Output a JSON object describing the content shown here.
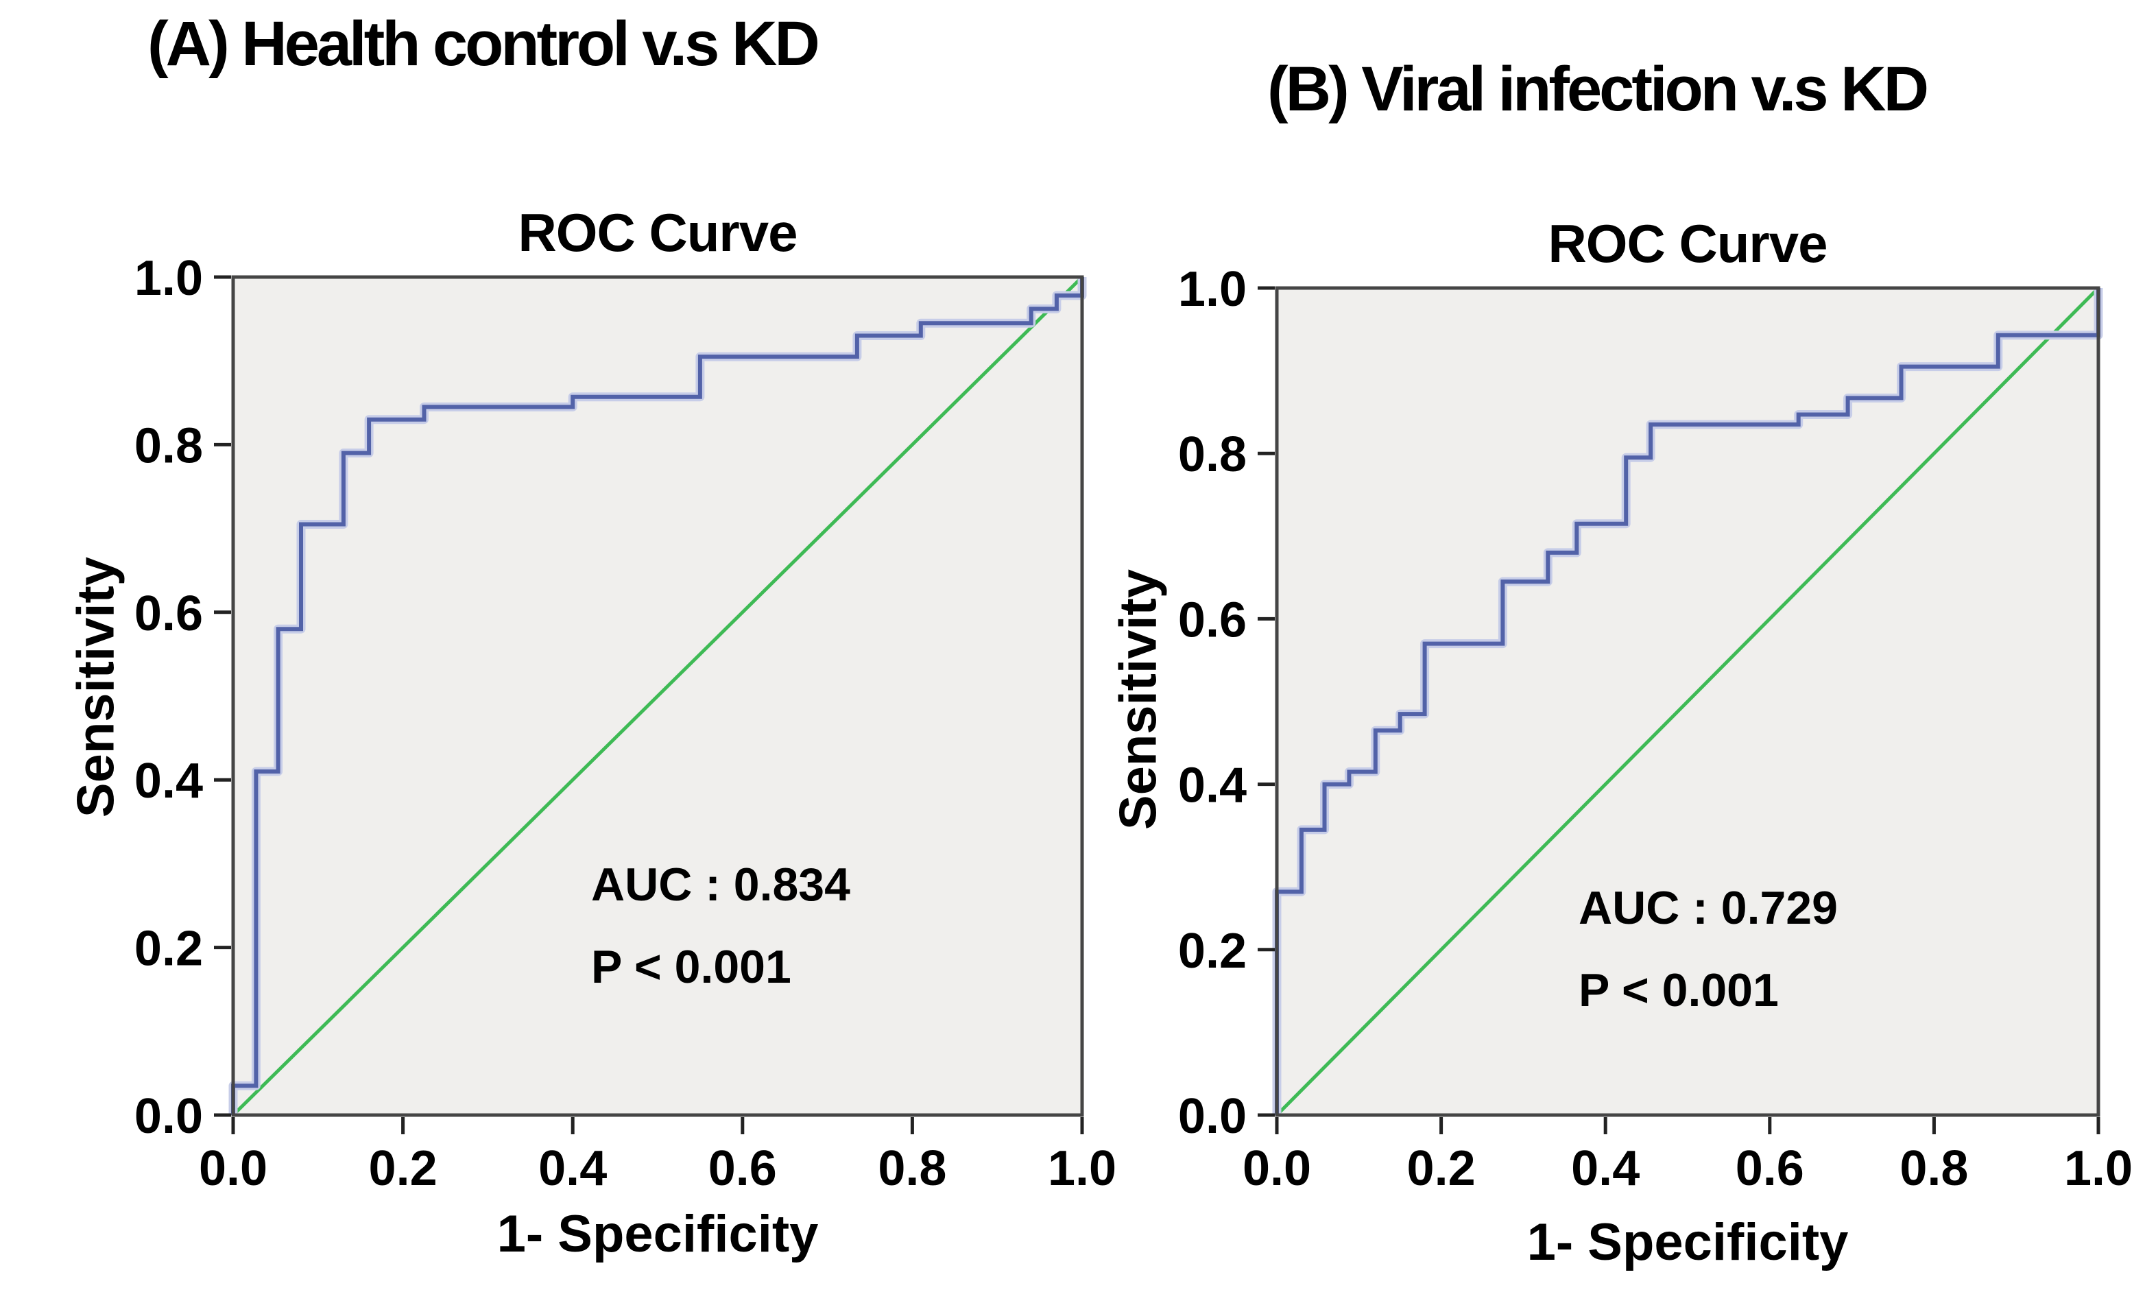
{
  "figure": {
    "background": "#ffffff",
    "description_labels": {
      "panel_a": "(A) Health control v.s KD",
      "panel_b": "(B) Viral infection v.s KD"
    }
  },
  "colors": {
    "roc_blue": "#5262a8",
    "roc_blue_halo": "#c7cde8",
    "reference_green": "#3eba55",
    "plot_background": "#f0efed",
    "plot_border": "#454545",
    "tick_color": "#222222",
    "text": "#000000"
  },
  "chart_data": [
    {
      "type": "line",
      "panel": "A",
      "panel_title": "(A) Health control v.s KD",
      "title": "ROC Curve",
      "xlabel": "1- Specificity",
      "ylabel": "Sensitivity",
      "xlim": [
        0,
        1
      ],
      "ylim": [
        0,
        1
      ],
      "x_ticks": [
        0.0,
        0.2,
        0.4,
        0.6,
        0.8,
        1.0
      ],
      "y_ticks": [
        0.0,
        0.2,
        0.4,
        0.6,
        0.8,
        1.0
      ],
      "grid": false,
      "legend": "none",
      "annotations": [
        "AUC : 0.834",
        "P < 0.001"
      ],
      "series": [
        {
          "name": "ROC curve",
          "style": "step",
          "color": "#5262a8",
          "width": 6,
          "halo": true,
          "points": [
            [
              0,
              0
            ],
            [
              0,
              0.035
            ],
            [
              0.027,
              0.035
            ],
            [
              0.027,
              0.41
            ],
            [
              0.053,
              0.41
            ],
            [
              0.053,
              0.58
            ],
            [
              0.08,
              0.58
            ],
            [
              0.08,
              0.705
            ],
            [
              0.13,
              0.705
            ],
            [
              0.13,
              0.79
            ],
            [
              0.16,
              0.79
            ],
            [
              0.16,
              0.83
            ],
            [
              0.225,
              0.83
            ],
            [
              0.225,
              0.845
            ],
            [
              0.4,
              0.845
            ],
            [
              0.4,
              0.857
            ],
            [
              0.55,
              0.857
            ],
            [
              0.55,
              0.905
            ],
            [
              0.735,
              0.905
            ],
            [
              0.735,
              0.93
            ],
            [
              0.81,
              0.93
            ],
            [
              0.81,
              0.945
            ],
            [
              0.94,
              0.945
            ],
            [
              0.94,
              0.962
            ],
            [
              0.97,
              0.962
            ],
            [
              0.97,
              0.978
            ],
            [
              1,
              0.978
            ],
            [
              1,
              1
            ]
          ]
        },
        {
          "name": "Reference line",
          "style": "line",
          "color": "#3eba55",
          "width": 5,
          "halo": false,
          "points": [
            [
              0,
              0
            ],
            [
              1,
              1
            ]
          ]
        }
      ]
    },
    {
      "type": "line",
      "panel": "B",
      "panel_title": "(B) Viral infection v.s KD",
      "title": "ROC Curve",
      "xlabel": "1- Specificity",
      "ylabel": "Sensitivity",
      "xlim": [
        0,
        1
      ],
      "ylim": [
        0,
        1
      ],
      "x_ticks": [
        0.0,
        0.2,
        0.4,
        0.6,
        0.8,
        1.0
      ],
      "y_ticks": [
        0.0,
        0.2,
        0.4,
        0.6,
        0.8,
        1.0
      ],
      "grid": false,
      "legend": "none",
      "annotations": [
        "AUC : 0.729",
        "P < 0.001"
      ],
      "series": [
        {
          "name": "ROC curve",
          "style": "step",
          "color": "#5262a8",
          "width": 6,
          "halo": true,
          "points": [
            [
              0,
              0
            ],
            [
              0,
              0.27
            ],
            [
              0.03,
              0.27
            ],
            [
              0.03,
              0.345
            ],
            [
              0.058,
              0.345
            ],
            [
              0.058,
              0.4
            ],
            [
              0.088,
              0.4
            ],
            [
              0.088,
              0.415
            ],
            [
              0.12,
              0.415
            ],
            [
              0.12,
              0.465
            ],
            [
              0.15,
              0.465
            ],
            [
              0.15,
              0.485
            ],
            [
              0.18,
              0.485
            ],
            [
              0.18,
              0.57
            ],
            [
              0.275,
              0.57
            ],
            [
              0.275,
              0.645
            ],
            [
              0.33,
              0.645
            ],
            [
              0.33,
              0.68
            ],
            [
              0.365,
              0.68
            ],
            [
              0.365,
              0.715
            ],
            [
              0.425,
              0.715
            ],
            [
              0.425,
              0.795
            ],
            [
              0.455,
              0.795
            ],
            [
              0.455,
              0.835
            ],
            [
              0.635,
              0.835
            ],
            [
              0.635,
              0.847
            ],
            [
              0.695,
              0.847
            ],
            [
              0.695,
              0.867
            ],
            [
              0.76,
              0.867
            ],
            [
              0.76,
              0.905
            ],
            [
              0.878,
              0.905
            ],
            [
              0.878,
              0.943
            ],
            [
              1,
              0.943
            ],
            [
              1,
              1
            ]
          ]
        },
        {
          "name": "Reference line",
          "style": "line",
          "color": "#3eba55",
          "width": 5,
          "halo": false,
          "points": [
            [
              0,
              0
            ],
            [
              1,
              1
            ]
          ]
        }
      ]
    }
  ]
}
